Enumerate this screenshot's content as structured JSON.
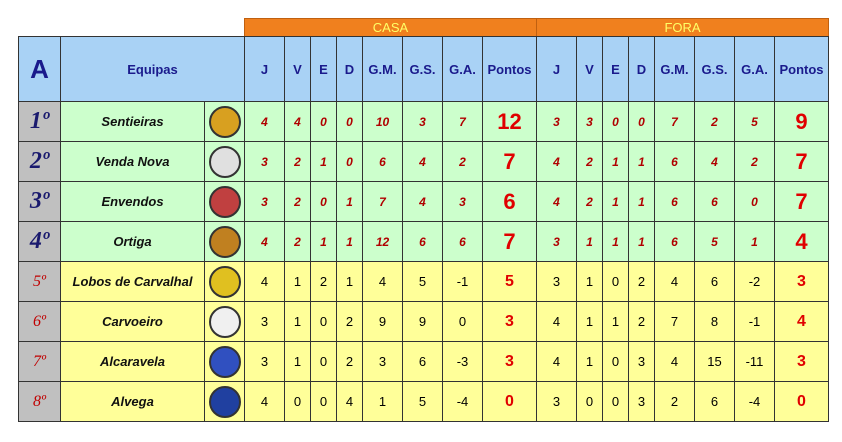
{
  "group": "A",
  "teams_header": "Equipas",
  "home_label": "CASA",
  "away_label": "FORA",
  "columns": [
    "J",
    "V",
    "E",
    "D",
    "G.M.",
    "G.S.",
    "G.A.",
    "Pontos"
  ],
  "rows": [
    {
      "rank": "1º",
      "team": "Sentieiras",
      "home": [
        4,
        4,
        0,
        0,
        10,
        3,
        7,
        12
      ],
      "away": [
        3,
        3,
        0,
        0,
        7,
        2,
        5,
        9
      ]
    },
    {
      "rank": "2º",
      "team": "Venda Nova",
      "home": [
        3,
        2,
        1,
        0,
        6,
        4,
        2,
        7
      ],
      "away": [
        4,
        2,
        1,
        1,
        6,
        4,
        2,
        7
      ]
    },
    {
      "rank": "3º",
      "team": "Envendos",
      "home": [
        3,
        2,
        0,
        1,
        7,
        4,
        3,
        6
      ],
      "away": [
        4,
        2,
        1,
        1,
        6,
        6,
        0,
        7
      ]
    },
    {
      "rank": "4º",
      "team": "Ortiga",
      "home": [
        4,
        2,
        1,
        1,
        12,
        6,
        6,
        7
      ],
      "away": [
        3,
        1,
        1,
        1,
        6,
        5,
        1,
        4
      ]
    },
    {
      "rank": "5º",
      "team": "Lobos de Carvalhal",
      "home": [
        4,
        1,
        2,
        1,
        4,
        5,
        -1,
        5
      ],
      "away": [
        3,
        1,
        0,
        2,
        4,
        6,
        -2,
        3
      ]
    },
    {
      "rank": "6º",
      "team": "Carvoeiro",
      "home": [
        3,
        1,
        0,
        2,
        9,
        9,
        0,
        3
      ],
      "away": [
        4,
        1,
        1,
        2,
        7,
        8,
        -1,
        4
      ]
    },
    {
      "rank": "7º",
      "team": "Alcaravela",
      "home": [
        3,
        1,
        0,
        2,
        3,
        6,
        -3,
        3
      ],
      "away": [
        4,
        1,
        0,
        3,
        4,
        15,
        -11,
        3
      ]
    },
    {
      "rank": "8º",
      "team": "Alvega",
      "home": [
        4,
        0,
        0,
        4,
        1,
        5,
        -4,
        0
      ],
      "away": [
        3,
        0,
        0,
        3,
        2,
        6,
        -4,
        0
      ]
    }
  ]
}
